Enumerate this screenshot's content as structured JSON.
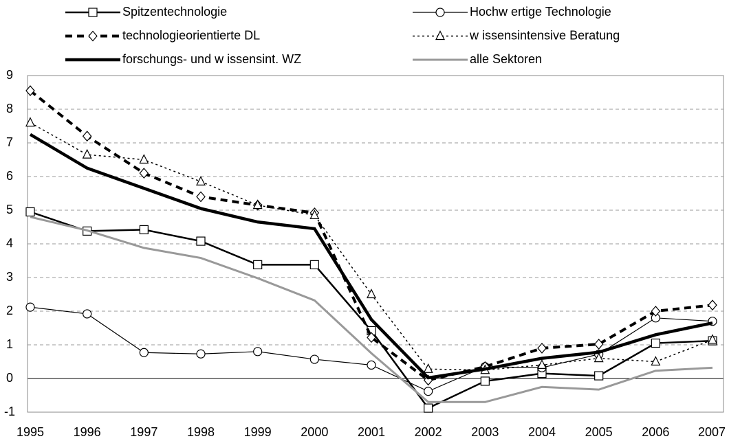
{
  "chart_data": {
    "type": "line",
    "x": [
      "1995",
      "1996",
      "1997",
      "1998",
      "1999",
      "2000",
      "2001",
      "2002",
      "2003",
      "2004",
      "2005",
      "2006",
      "2007"
    ],
    "ylim": [
      -1,
      9
    ],
    "yticks": [
      -1,
      0,
      1,
      2,
      3,
      4,
      5,
      6,
      7,
      8,
      9
    ],
    "grid": true,
    "series": [
      {
        "name": "Spitzentechnologie",
        "color": "#000000",
        "values": [
          4.95,
          4.38,
          4.42,
          4.08,
          3.38,
          3.38,
          1.42,
          -0.88,
          -0.08,
          0.15,
          0.08,
          1.05,
          1.12
        ]
      },
      {
        "name": "Hochw ertige Technologie",
        "color": "#000000",
        "values": [
          2.12,
          1.92,
          0.77,
          0.73,
          0.8,
          0.57,
          0.4,
          -0.38,
          0.35,
          0.32,
          0.72,
          1.8,
          1.7
        ]
      },
      {
        "name": "technologieorientierte DL",
        "color": "#000000",
        "values": [
          8.55,
          7.2,
          6.1,
          5.4,
          5.15,
          4.92,
          1.22,
          -0.05,
          0.35,
          0.9,
          1.02,
          2.0,
          2.18
        ]
      },
      {
        "name": "w issensintensive Beratung",
        "color": "#000000",
        "values": [
          7.6,
          6.65,
          6.5,
          5.85,
          5.15,
          4.85,
          2.5,
          0.28,
          0.25,
          0.4,
          0.6,
          0.5,
          1.15
        ]
      },
      {
        "name": "forschungs- und w issensint. WZ",
        "color": "#000000",
        "values": [
          7.25,
          6.25,
          5.65,
          5.05,
          4.65,
          4.45,
          1.75,
          0.02,
          0.28,
          0.6,
          0.78,
          1.3,
          1.65
        ]
      },
      {
        "name": "alle Sektoren",
        "color": "#999999",
        "values": [
          4.8,
          4.4,
          3.88,
          3.58,
          2.98,
          2.32,
          0.75,
          -0.7,
          -0.7,
          -0.25,
          -0.33,
          0.23,
          0.32
        ]
      }
    ]
  }
}
